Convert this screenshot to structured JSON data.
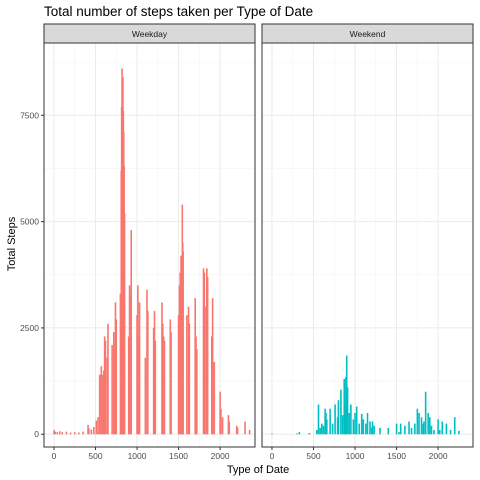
{
  "chart_data": {
    "type": "bar",
    "title": "Total number of steps taken per Type of Date",
    "xlabel": "Type of Date",
    "ylabel": "Total Steps",
    "xlim": [
      -120,
      2420
    ],
    "ylim": [
      -300,
      9200
    ],
    "x_ticks": [
      0,
      500,
      1000,
      1500,
      2000
    ],
    "x_tick_labels": [
      "0",
      "500",
      "1000",
      "1500",
      "2000"
    ],
    "y_ticks": [
      0,
      2500,
      5000,
      7500
    ],
    "y_tick_labels": [
      "0",
      "2500",
      "5000",
      "7500"
    ],
    "grid": true,
    "legend": "none",
    "panels": [
      {
        "name": "Weekday",
        "color": "#F8766D",
        "x": [
          0,
          15,
          40,
          70,
          100,
          150,
          200,
          250,
          300,
          350,
          410,
          420,
          450,
          480,
          510,
          530,
          550,
          570,
          580,
          600,
          610,
          620,
          640,
          650,
          700,
          720,
          730,
          740,
          750,
          800,
          810,
          815,
          820,
          825,
          830,
          835,
          840,
          845,
          850,
          900,
          910,
          920,
          930,
          1000,
          1010,
          1020,
          1030,
          1100,
          1120,
          1130,
          1200,
          1210,
          1220,
          1300,
          1310,
          1320,
          1330,
          1400,
          1410,
          1500,
          1510,
          1520,
          1530,
          1540,
          1545,
          1550,
          1555,
          1600,
          1620,
          1630,
          1700,
          1710,
          1720,
          1800,
          1810,
          1830,
          1840,
          1850,
          1900,
          1910,
          1930,
          2000,
          2010,
          2030,
          2100,
          2110,
          2200,
          2210,
          2300,
          2355
        ],
        "y": [
          100,
          60,
          50,
          70,
          50,
          60,
          40,
          50,
          40,
          60,
          220,
          140,
          110,
          170,
          320,
          400,
          1400,
          1600,
          1400,
          1500,
          2300,
          2200,
          1800,
          2600,
          2100,
          2400,
          2000,
          3100,
          2700,
          3300,
          6200,
          7700,
          8600,
          8300,
          8400,
          7600,
          7100,
          6300,
          5200,
          2300,
          3500,
          3200,
          4800,
          2800,
          3500,
          2300,
          3100,
          1800,
          3400,
          2900,
          2500,
          2900,
          2200,
          3100,
          2600,
          2300,
          2200,
          2700,
          2400,
          2800,
          3500,
          3800,
          4200,
          3600,
          5400,
          4500,
          4300,
          2800,
          3000,
          2600,
          3200,
          2300,
          2000,
          3900,
          3800,
          3000,
          3900,
          3700,
          2300,
          3200,
          1700,
          1000,
          600,
          400,
          450,
          300,
          200,
          150,
          300,
          100
        ]
      },
      {
        "name": "Weekend",
        "color": "#00BFC4",
        "x": [
          0,
          300,
          330,
          450,
          540,
          560,
          580,
          600,
          620,
          640,
          650,
          660,
          700,
          730,
          760,
          790,
          800,
          830,
          850,
          870,
          880,
          890,
          900,
          910,
          930,
          950,
          980,
          1000,
          1020,
          1050,
          1080,
          1100,
          1130,
          1150,
          1180,
          1200,
          1210,
          1230,
          1300,
          1400,
          1500,
          1530,
          1550,
          1600,
          1650,
          1680,
          1720,
          1750,
          1770,
          1800,
          1820,
          1830,
          1850,
          1880,
          1900,
          1920,
          1950,
          2000,
          2020,
          2050,
          2100,
          2150,
          2200,
          2250
        ],
        "y": [
          20,
          20,
          50,
          30,
          100,
          700,
          150,
          250,
          200,
          600,
          500,
          350,
          600,
          250,
          700,
          400,
          800,
          1050,
          450,
          1300,
          700,
          1350,
          1850,
          1100,
          500,
          700,
          350,
          500,
          650,
          250,
          480,
          350,
          250,
          500,
          300,
          150,
          300,
          200,
          150,
          150,
          250,
          50,
          250,
          200,
          300,
          150,
          250,
          600,
          500,
          400,
          250,
          300,
          1000,
          500,
          400,
          200,
          100,
          350,
          100,
          300,
          250,
          100,
          400,
          80
        ]
      }
    ]
  }
}
